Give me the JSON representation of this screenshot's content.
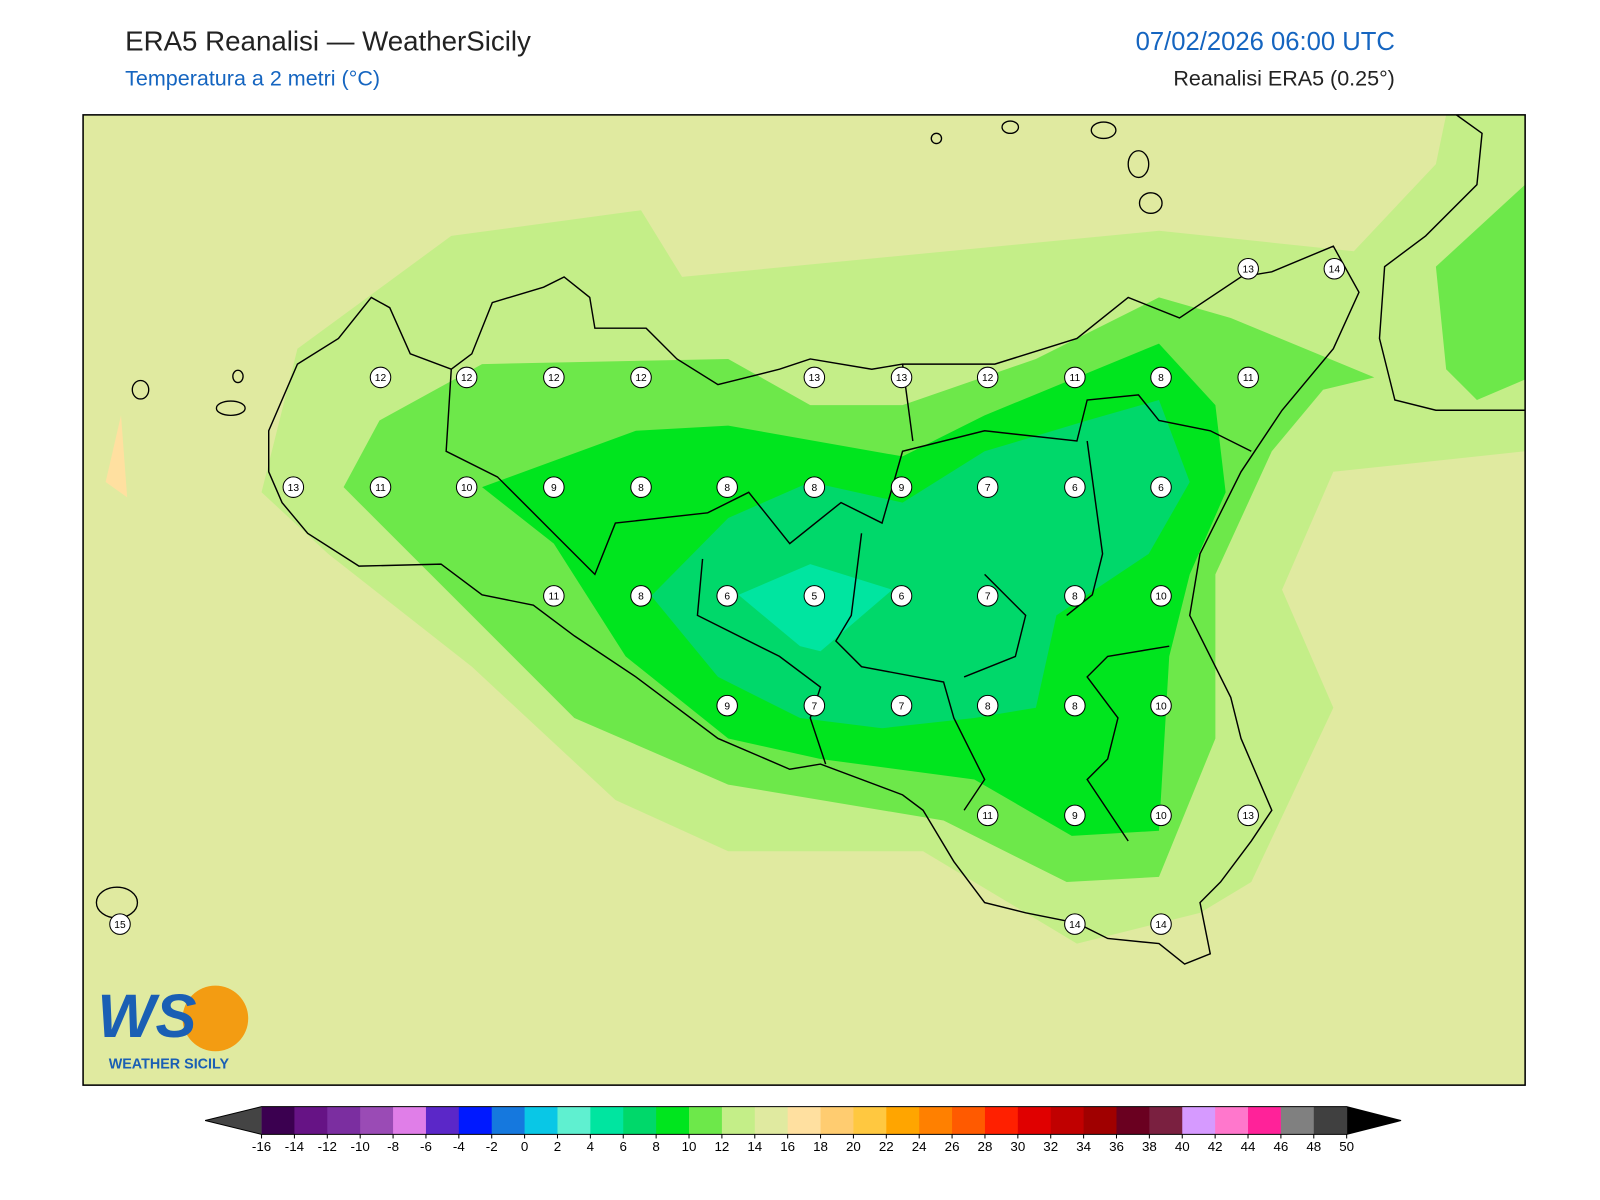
{
  "header": {
    "title": "ERA5 Reanalisi — WeatherSicily",
    "subtitle": "Temperatura a 2 metri (°C)",
    "datetime": "07/02/2026 06:00 UTC",
    "source": "Reanalisi ERA5 (0.25°)"
  },
  "stations": {
    "values": [
      13,
      14,
      12,
      12,
      12,
      12,
      13,
      13,
      12,
      11,
      8,
      11,
      13,
      11,
      10,
      9,
      8,
      8,
      8,
      9,
      7,
      6,
      6,
      11,
      8,
      6,
      5,
      6,
      7,
      8,
      10,
      9,
      7,
      7,
      8,
      8,
      10,
      11,
      9,
      10,
      13,
      15,
      14,
      14
    ]
  },
  "colorbar": {
    "ticks": [
      -16,
      -14,
      -12,
      -10,
      -8,
      -6,
      -4,
      -2,
      0,
      2,
      4,
      6,
      8,
      10,
      12,
      14,
      16,
      18,
      20,
      22,
      24,
      26,
      28,
      30,
      32,
      34,
      36,
      38,
      40,
      42,
      44,
      46,
      48,
      50
    ],
    "colors": [
      "#3b0050",
      "#661385",
      "#7b2ea0",
      "#9a4bb5",
      "#e07ee8",
      "#5b27c8",
      "#0019ff",
      "#1578de",
      "#09c7e6",
      "#5ff0d0",
      "#00e5a0",
      "#00d86a",
      "#00e51e",
      "#6de84a",
      "#c4ee88",
      "#e0eaa0",
      "#ffe0a0",
      "#ffcc70",
      "#ffc840",
      "#ffa500",
      "#ff8000",
      "#ff5a00",
      "#ff2000",
      "#e00000",
      "#c00000",
      "#a00000",
      "#6a0020",
      "#7a2040",
      "#d69aff",
      "#ff77cc",
      "#ff2299",
      "#808080",
      "#404040"
    ],
    "under_color": "#444444",
    "over_color": "#000000"
  },
  "logo": {
    "mark": "WS",
    "text": "WEATHER SICILY"
  }
}
